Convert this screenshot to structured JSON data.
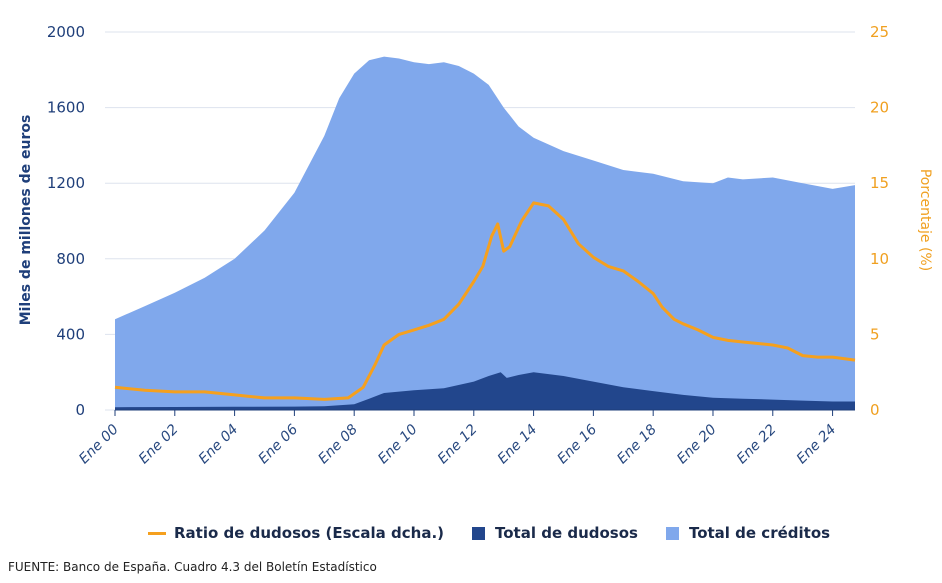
{
  "chart_data": {
    "type": "area",
    "x_ticks": [
      "Ene 00",
      "Ene 02",
      "Ene 04",
      "Ene 06",
      "Ene 08",
      "Ene 10",
      "Ene 12",
      "Ene 14",
      "Ene 16",
      "Ene 18",
      "Ene 20",
      "Ene 22",
      "Ene 24"
    ],
    "x_range": [
      2000.0,
      2024.75
    ],
    "ylabel": "Miles de millones de euros",
    "ylabel_right": "Porcentaje (%)",
    "ylim": [
      0,
      2000
    ],
    "ylim_right": [
      0,
      25
    ],
    "y_ticks": [
      "0",
      "400",
      "800",
      "1200",
      "1600",
      "2000"
    ],
    "y_ticks_right": [
      "0",
      "5",
      "10",
      "15",
      "20",
      "25"
    ],
    "grid": "horizontal",
    "legend_position": "bottom",
    "series": [
      {
        "name": "Total de créditos",
        "axis": "left",
        "kind": "area",
        "color": "#80a8ec",
        "points": [
          [
            2000.0,
            480
          ],
          [
            2001.0,
            550
          ],
          [
            2002.0,
            620
          ],
          [
            2003.0,
            700
          ],
          [
            2004.0,
            800
          ],
          [
            2005.0,
            950
          ],
          [
            2006.0,
            1150
          ],
          [
            2007.0,
            1450
          ],
          [
            2007.5,
            1650
          ],
          [
            2008.0,
            1780
          ],
          [
            2008.5,
            1850
          ],
          [
            2009.0,
            1870
          ],
          [
            2009.5,
            1860
          ],
          [
            2010.0,
            1840
          ],
          [
            2010.5,
            1830
          ],
          [
            2011.0,
            1840
          ],
          [
            2011.5,
            1820
          ],
          [
            2012.0,
            1780
          ],
          [
            2012.5,
            1720
          ],
          [
            2013.0,
            1600
          ],
          [
            2013.5,
            1500
          ],
          [
            2014.0,
            1440
          ],
          [
            2015.0,
            1370
          ],
          [
            2016.0,
            1320
          ],
          [
            2017.0,
            1270
          ],
          [
            2018.0,
            1250
          ],
          [
            2019.0,
            1210
          ],
          [
            2020.0,
            1200
          ],
          [
            2020.5,
            1230
          ],
          [
            2021.0,
            1220
          ],
          [
            2022.0,
            1230
          ],
          [
            2023.0,
            1200
          ],
          [
            2024.0,
            1170
          ],
          [
            2024.75,
            1190
          ]
        ]
      },
      {
        "name": "Total de dudosos",
        "axis": "left",
        "kind": "area",
        "color": "#22468c",
        "points": [
          [
            2000.0,
            15
          ],
          [
            2002.0,
            16
          ],
          [
            2004.0,
            17
          ],
          [
            2006.0,
            18
          ],
          [
            2007.0,
            20
          ],
          [
            2008.0,
            30
          ],
          [
            2008.5,
            60
          ],
          [
            2009.0,
            90
          ],
          [
            2010.0,
            105
          ],
          [
            2011.0,
            115
          ],
          [
            2012.0,
            150
          ],
          [
            2012.5,
            180
          ],
          [
            2012.9,
            200
          ],
          [
            2013.1,
            170
          ],
          [
            2013.5,
            185
          ],
          [
            2014.0,
            200
          ],
          [
            2015.0,
            180
          ],
          [
            2016.0,
            150
          ],
          [
            2017.0,
            120
          ],
          [
            2018.0,
            100
          ],
          [
            2019.0,
            80
          ],
          [
            2020.0,
            65
          ],
          [
            2021.0,
            60
          ],
          [
            2022.0,
            55
          ],
          [
            2023.0,
            50
          ],
          [
            2024.0,
            45
          ],
          [
            2024.75,
            45
          ]
        ]
      },
      {
        "name": "Ratio de dudosos (Escala dcha.)",
        "axis": "right",
        "kind": "line",
        "color": "#f5a01e",
        "points": [
          [
            2000.0,
            1.5
          ],
          [
            2001.0,
            1.3
          ],
          [
            2002.0,
            1.2
          ],
          [
            2003.0,
            1.2
          ],
          [
            2004.0,
            1.0
          ],
          [
            2005.0,
            0.8
          ],
          [
            2006.0,
            0.8
          ],
          [
            2007.0,
            0.7
          ],
          [
            2007.8,
            0.8
          ],
          [
            2008.3,
            1.5
          ],
          [
            2008.7,
            3.0
          ],
          [
            2009.0,
            4.3
          ],
          [
            2009.5,
            5.0
          ],
          [
            2010.0,
            5.3
          ],
          [
            2010.5,
            5.6
          ],
          [
            2011.0,
            6.0
          ],
          [
            2011.5,
            7.0
          ],
          [
            2012.0,
            8.5
          ],
          [
            2012.3,
            9.5
          ],
          [
            2012.6,
            11.5
          ],
          [
            2012.8,
            12.3
          ],
          [
            2013.0,
            10.5
          ],
          [
            2013.2,
            10.8
          ],
          [
            2013.6,
            12.5
          ],
          [
            2014.0,
            13.7
          ],
          [
            2014.5,
            13.5
          ],
          [
            2015.0,
            12.6
          ],
          [
            2015.5,
            11.0
          ],
          [
            2016.0,
            10.1
          ],
          [
            2016.5,
            9.5
          ],
          [
            2017.0,
            9.2
          ],
          [
            2017.5,
            8.5
          ],
          [
            2018.0,
            7.7
          ],
          [
            2018.3,
            6.8
          ],
          [
            2018.7,
            6.0
          ],
          [
            2019.0,
            5.7
          ],
          [
            2019.5,
            5.3
          ],
          [
            2020.0,
            4.8
          ],
          [
            2020.5,
            4.6
          ],
          [
            2021.0,
            4.5
          ],
          [
            2021.5,
            4.4
          ],
          [
            2022.0,
            4.3
          ],
          [
            2022.5,
            4.1
          ],
          [
            2023.0,
            3.6
          ],
          [
            2023.5,
            3.5
          ],
          [
            2024.0,
            3.5
          ],
          [
            2024.75,
            3.3
          ]
        ]
      }
    ]
  },
  "legend": [
    {
      "label": "Ratio de dudosos (Escala dcha.)",
      "kind": "line",
      "color": "#f5a01e"
    },
    {
      "label": "Total de dudosos",
      "kind": "box",
      "color": "#22468c"
    },
    {
      "label": "Total de créditos",
      "kind": "box",
      "color": "#80a8ec"
    }
  ],
  "source": "FUENTE: Banco de España. Cuadro 4.3 del Boletín Estadístico"
}
